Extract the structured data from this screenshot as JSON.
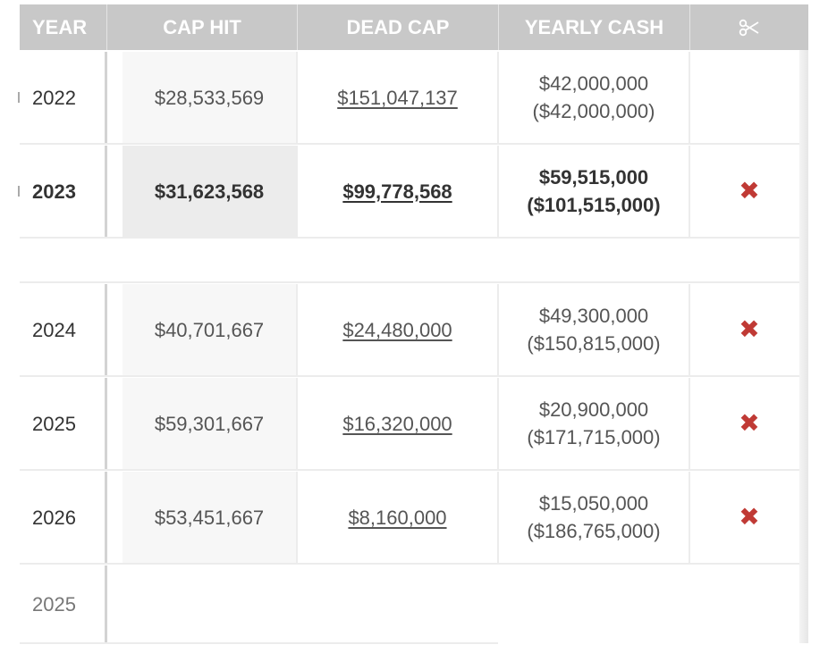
{
  "header": {
    "year": "YEAR",
    "cap_hit": "CAP HIT",
    "dead_cap": "DEAD CAP",
    "yearly_cash": "YEARLY CASH",
    "cut_icon": "scissors-icon"
  },
  "rows": [
    {
      "year": "2022",
      "cap_hit": "$28,533,569",
      "dead_cap": "$151,047,137",
      "cash": "$42,000,000",
      "cash_cumulative": "($42,000,000)",
      "cut": ""
    },
    {
      "year": "2023",
      "cap_hit": "$31,623,568",
      "dead_cap": "$99,778,568",
      "cash": "$59,515,000",
      "cash_cumulative": "($101,515,000)",
      "cut": "✖"
    },
    {
      "year": "2024",
      "cap_hit": "$40,701,667",
      "dead_cap": "$24,480,000",
      "cash": "$49,300,000",
      "cash_cumulative": "($150,815,000)",
      "cut": "✖"
    },
    {
      "year": "2025",
      "cap_hit": "$59,301,667",
      "dead_cap": "$16,320,000",
      "cash": "$20,900,000",
      "cash_cumulative": "($171,715,000)",
      "cut": "✖"
    },
    {
      "year": "2026",
      "cap_hit": "$53,451,667",
      "dead_cap": "$8,160,000",
      "cash": "$15,050,000",
      "cash_cumulative": "($186,765,000)",
      "cut": "✖"
    }
  ],
  "footer_row": {
    "year": "2025"
  },
  "colors": {
    "header_bg": "#c8c8c8",
    "cut_red": "#c03a35"
  }
}
